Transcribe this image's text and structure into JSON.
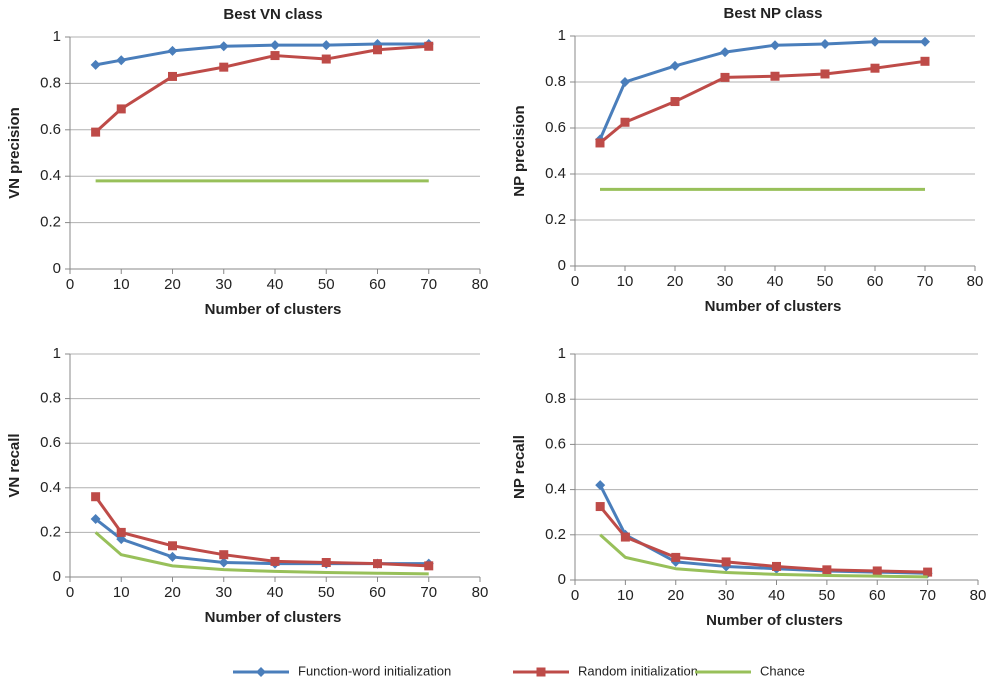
{
  "chart_data": [
    {
      "type": "line",
      "title": "Best VN class",
      "xlabel": "Number of clusters",
      "ylabel": "VN precision",
      "x": [
        5,
        10,
        20,
        30,
        40,
        50,
        60,
        70
      ],
      "xlim": [
        0,
        80
      ],
      "xticks": [
        0,
        10,
        20,
        30,
        40,
        50,
        60,
        70,
        80
      ],
      "ylim": [
        0,
        1
      ],
      "yticks": [
        0,
        0.2,
        0.4,
        0.6,
        0.8,
        1
      ],
      "grid": true,
      "legend": "bottom",
      "series": [
        {
          "name": "Function-word initialization",
          "color": "#4a7ebb",
          "marker": "diamond",
          "values": [
            0.88,
            0.9,
            0.94,
            0.96,
            0.965,
            0.965,
            0.97,
            0.97
          ]
        },
        {
          "name": "Random initialization",
          "color": "#be4b48",
          "marker": "square",
          "values": [
            0.59,
            0.69,
            0.83,
            0.87,
            0.92,
            0.905,
            0.945,
            0.96
          ]
        },
        {
          "name": "Chance",
          "color": "#98c05a",
          "values": [
            0.38,
            0.38,
            0.38,
            0.38,
            0.38,
            0.38,
            0.38,
            0.38
          ]
        }
      ]
    },
    {
      "type": "line",
      "title": "Best NP class",
      "xlabel": "Number of clusters",
      "ylabel": "NP precision",
      "x": [
        5,
        10,
        20,
        30,
        40,
        50,
        60,
        70
      ],
      "xlim": [
        0,
        80
      ],
      "xticks": [
        0,
        10,
        20,
        30,
        40,
        50,
        60,
        70,
        80
      ],
      "ylim": [
        0,
        1
      ],
      "yticks": [
        0,
        0.2,
        0.4,
        0.6,
        0.8,
        1
      ],
      "grid": true,
      "series": [
        {
          "color": "#4a7ebb",
          "marker": "diamond",
          "values": [
            0.55,
            0.8,
            0.87,
            0.93,
            0.96,
            0.965,
            0.975,
            0.975
          ]
        },
        {
          "color": "#be4b48",
          "marker": "square",
          "values": [
            0.535,
            0.625,
            0.715,
            0.82,
            0.825,
            0.835,
            0.86,
            0.89
          ]
        },
        {
          "color": "#98c05a",
          "values": [
            0.333,
            0.333,
            0.333,
            0.333,
            0.333,
            0.333,
            0.333,
            0.333
          ]
        }
      ]
    },
    {
      "type": "line",
      "xlabel": "Number of clusters",
      "ylabel": "VN recall",
      "x": [
        5,
        10,
        20,
        30,
        40,
        50,
        60,
        70
      ],
      "xlim": [
        0,
        80
      ],
      "xticks": [
        0,
        10,
        20,
        30,
        40,
        50,
        60,
        70,
        80
      ],
      "ylim": [
        0,
        1
      ],
      "yticks": [
        0,
        0.2,
        0.4,
        0.6,
        0.8,
        1
      ],
      "grid": true,
      "series": [
        {
          "color": "#4a7ebb",
          "marker": "diamond",
          "values": [
            0.26,
            0.17,
            0.09,
            0.065,
            0.06,
            0.06,
            0.06,
            0.06
          ]
        },
        {
          "color": "#be4b48",
          "marker": "square",
          "values": [
            0.36,
            0.2,
            0.14,
            0.1,
            0.07,
            0.065,
            0.06,
            0.05
          ]
        },
        {
          "color": "#98c05a",
          "values": [
            0.2,
            0.1,
            0.05,
            0.033,
            0.025,
            0.02,
            0.017,
            0.014
          ]
        }
      ]
    },
    {
      "type": "line",
      "xlabel": "Number of clusters",
      "ylabel": "NP recall",
      "x": [
        5,
        10,
        20,
        30,
        40,
        50,
        60,
        70
      ],
      "xlim": [
        0,
        80
      ],
      "xticks": [
        0,
        10,
        20,
        30,
        40,
        50,
        60,
        70,
        80
      ],
      "ylim": [
        0,
        1
      ],
      "yticks": [
        0,
        0.2,
        0.4,
        0.6,
        0.8,
        1
      ],
      "grid": true,
      "series": [
        {
          "color": "#4a7ebb",
          "marker": "diamond",
          "values": [
            0.42,
            0.2,
            0.08,
            0.06,
            0.05,
            0.04,
            0.035,
            0.03
          ]
        },
        {
          "color": "#be4b48",
          "marker": "square",
          "values": [
            0.325,
            0.19,
            0.1,
            0.08,
            0.06,
            0.045,
            0.04,
            0.035
          ]
        },
        {
          "color": "#98c05a",
          "values": [
            0.2,
            0.1,
            0.05,
            0.033,
            0.025,
            0.02,
            0.017,
            0.014
          ]
        }
      ]
    }
  ]
}
